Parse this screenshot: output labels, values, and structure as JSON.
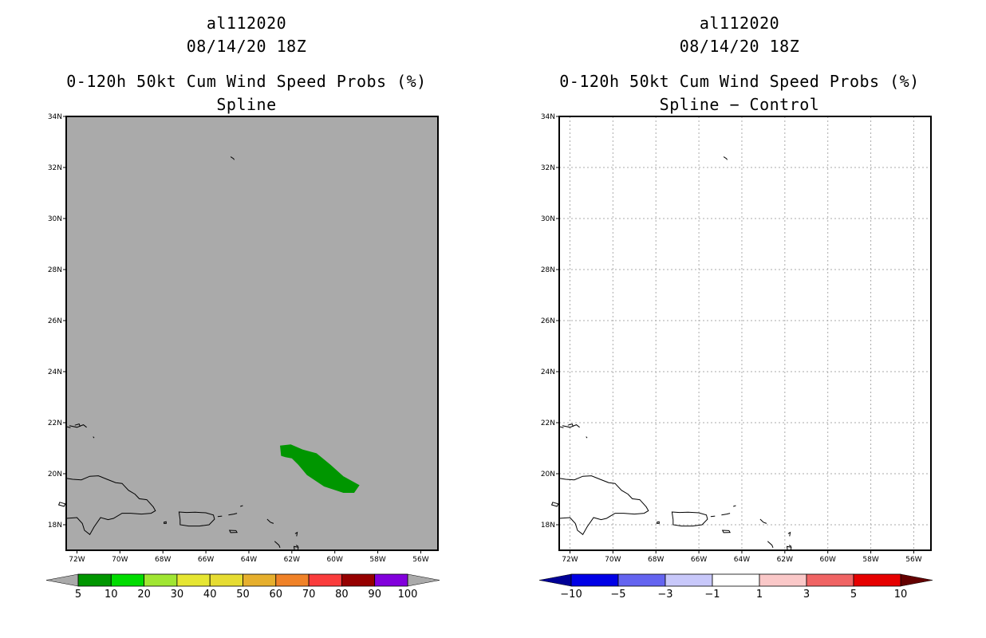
{
  "panels": [
    {
      "storm_id": "al112020",
      "datetime": "08/14/20 18Z",
      "product": "0-120h 50kt Cum Wind Speed Probs (%)",
      "subtitle": "Spline",
      "background": "#aaaaaa",
      "gridlines": false,
      "colorbar_labels": [
        "5",
        "10",
        "20",
        "30",
        "40",
        "50",
        "60",
        "70",
        "80",
        "90",
        "100"
      ],
      "colorbar_colors": [
        "#009600",
        "#00dc00",
        "#a0e632",
        "#e6e632",
        "#e6dc32",
        "#e6af2d",
        "#f08228",
        "#fa3c3c",
        "#960000",
        "#8200dc"
      ],
      "colorbar_under": "#aaaaaa",
      "colorbar_over": "#aaaaaa",
      "feature": {
        "name": "50kt probability area (5-10%)",
        "color": "#009600"
      }
    },
    {
      "storm_id": "al112020",
      "datetime": "08/14/20 18Z",
      "product": "0-120h 50kt Cum Wind Speed Probs (%)",
      "subtitle": "Spline − Control",
      "background": "#ffffff",
      "gridlines": true,
      "colorbar_labels": [
        "−10",
        "−5",
        "−3",
        "−1",
        "1",
        "3",
        "5",
        "10"
      ],
      "colorbar_colors": [
        "#0000e6",
        "#6464f0",
        "#c8c8fa",
        "#ffffff",
        "#fac8c8",
        "#f06464",
        "#e60000"
      ],
      "colorbar_under": "#000096",
      "colorbar_over": "#640000",
      "feature": null
    }
  ],
  "axes": {
    "lat_labels": [
      "34N",
      "32N",
      "30N",
      "28N",
      "26N",
      "24N",
      "22N",
      "20N",
      "18N"
    ],
    "lat_values": [
      34,
      32,
      30,
      28,
      26,
      24,
      22,
      20,
      18
    ],
    "lon_labels": [
      "72W",
      "70W",
      "68W",
      "66W",
      "64W",
      "62W",
      "60W",
      "58W",
      "56W"
    ],
    "lon_values": [
      -72,
      -70,
      -68,
      -66,
      -64,
      -62,
      -60,
      -58,
      -56
    ],
    "lat_range": [
      17,
      34
    ],
    "lon_range": [
      -72.5,
      -55.2
    ]
  }
}
